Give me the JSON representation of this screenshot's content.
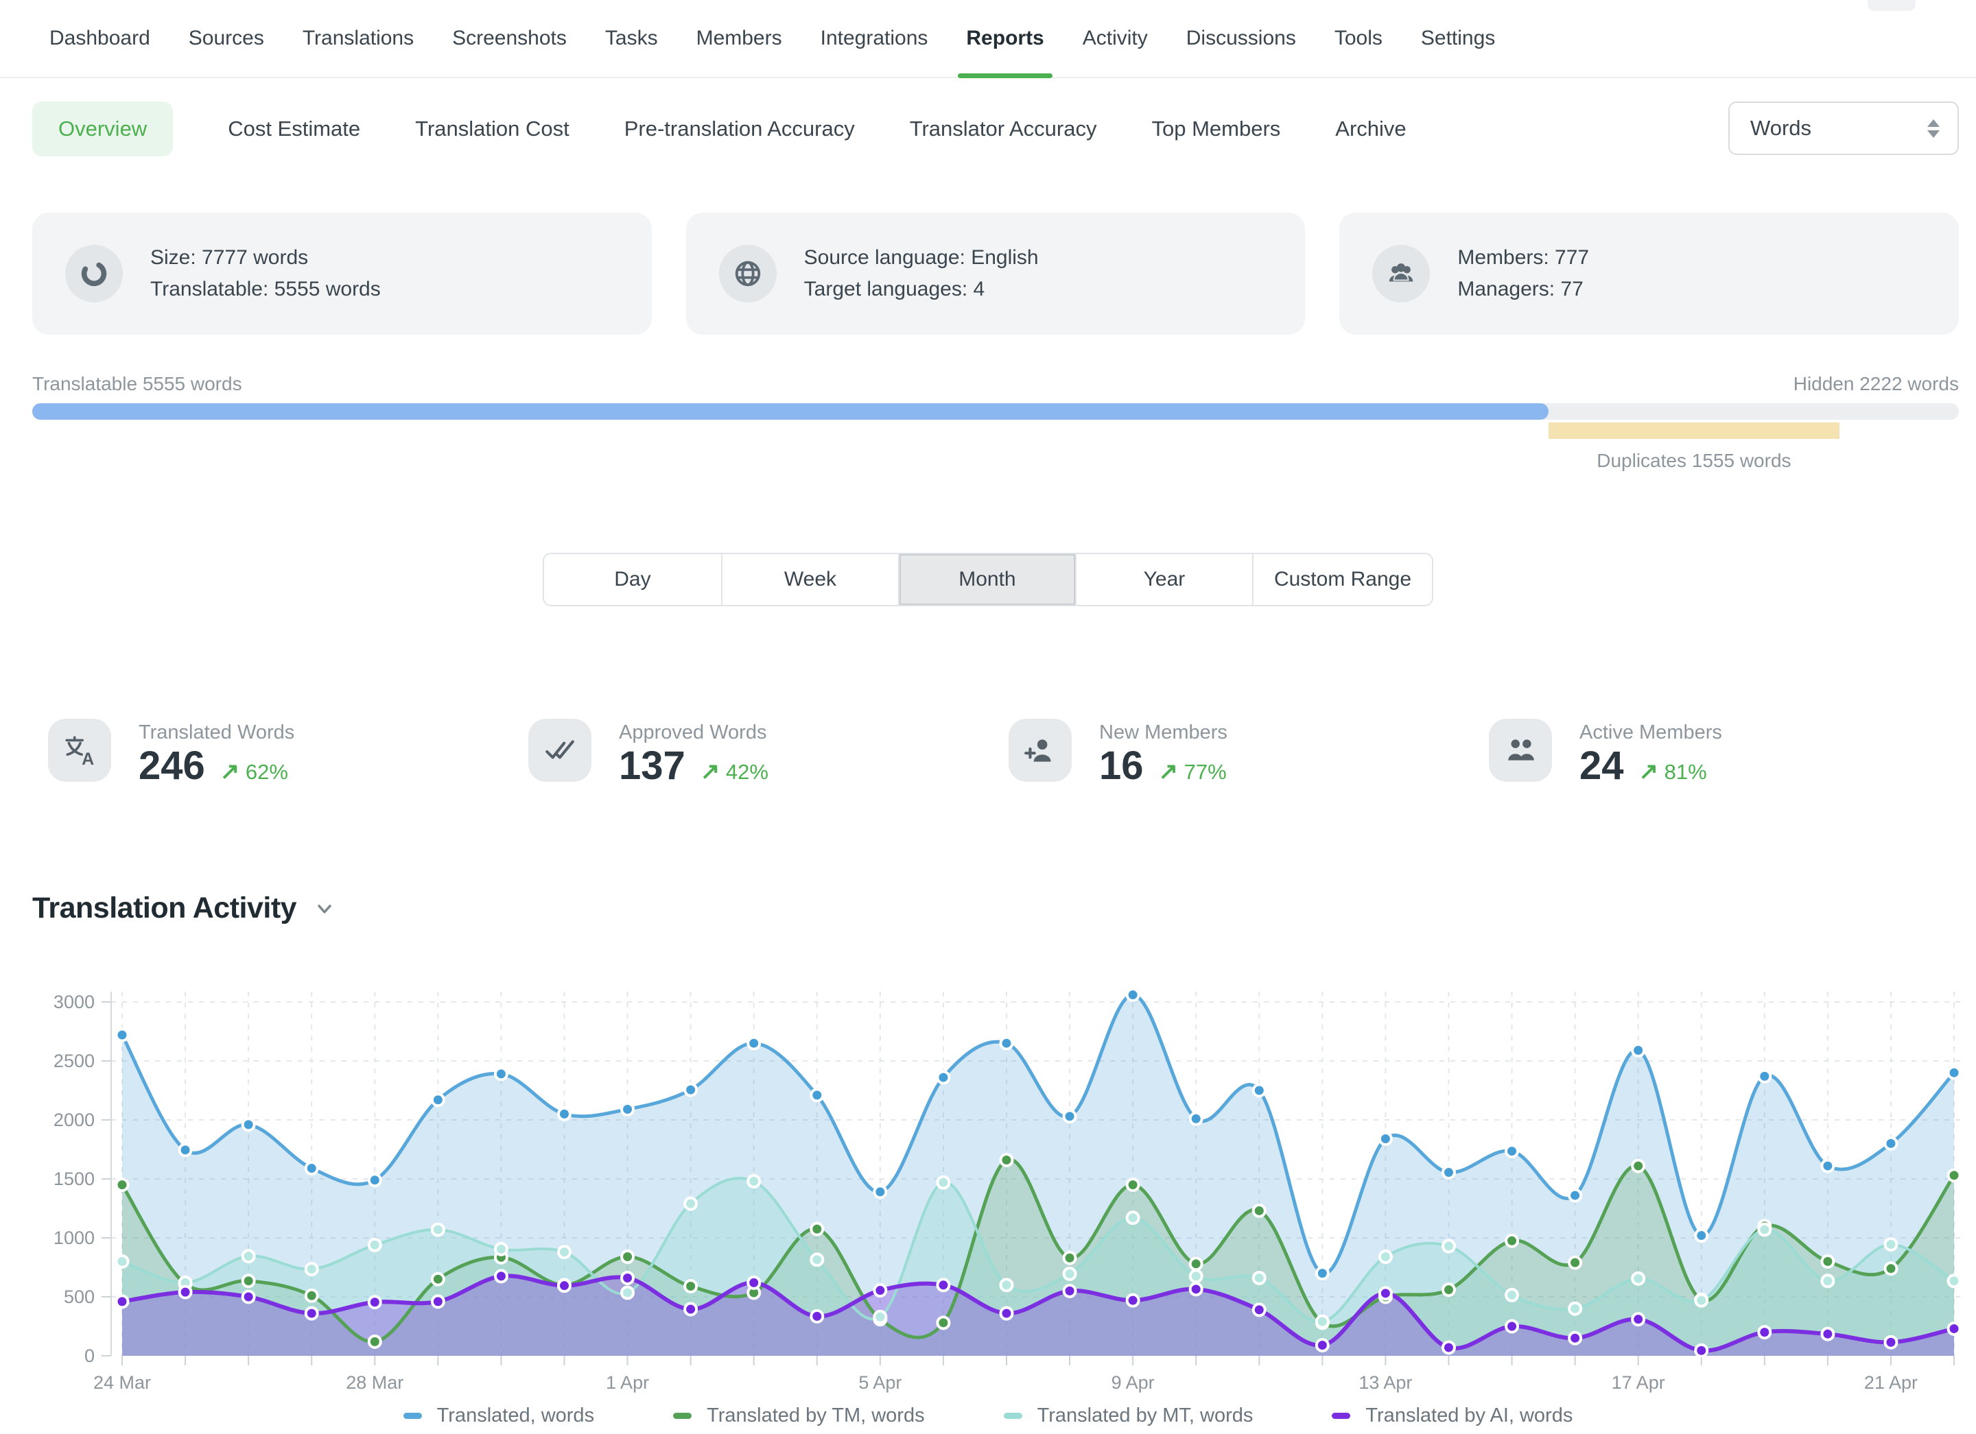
{
  "colors": {
    "accent_green": "#4caf50",
    "nav_underline_green": "#3aa23a",
    "bar_blue": "#8ab7ef",
    "bar_yellow": "#f4e3b0",
    "series_translated": "#57a7db",
    "series_tm": "#55a257",
    "series_mt": "#9adcd4",
    "series_ai": "#7b2fe0"
  },
  "nav": {
    "items": [
      "Dashboard",
      "Sources",
      "Translations",
      "Screenshots",
      "Tasks",
      "Members",
      "Integrations",
      "Reports",
      "Activity",
      "Discussions",
      "Tools",
      "Settings"
    ],
    "active": "Reports"
  },
  "report_tabs": {
    "items": [
      "Overview",
      "Cost Estimate",
      "Translation Cost",
      "Pre-translation Accuracy",
      "Translator Accuracy",
      "Top Members",
      "Archive"
    ],
    "active": "Overview",
    "unit_select_value": "Words"
  },
  "summary_cards": [
    {
      "icon": "donut-chart-icon",
      "lines": [
        "Size: 7777 words",
        "Translatable: 5555 words"
      ]
    },
    {
      "icon": "globe-icon",
      "lines": [
        "Source language: English",
        "Target languages: 4"
      ]
    },
    {
      "icon": "members-icon",
      "lines": [
        "Members: 777",
        "Managers: 77"
      ]
    }
  ],
  "words_bar": {
    "left_label": "Translatable 5555 words",
    "right_label": "Hidden 2222 words",
    "duplicates_label": "Duplicates 1555 words",
    "translatable_width_pct": 78.7,
    "duplicates_left_pct": 78.7,
    "duplicates_width_pct": 15.1
  },
  "range_tabs": {
    "options": [
      "Day",
      "Week",
      "Month",
      "Year",
      "Custom Range"
    ],
    "selected": "Month"
  },
  "metrics": [
    {
      "icon": "translate-icon",
      "label": "Translated Words",
      "value": "246",
      "delta": "62%"
    },
    {
      "icon": "double-check-icon",
      "label": "Approved Words",
      "value": "137",
      "delta": "42%"
    },
    {
      "icon": "person-plus-icon",
      "label": "New Members",
      "value": "16",
      "delta": "77%"
    },
    {
      "icon": "people-icon",
      "label": "Active Members",
      "value": "24",
      "delta": "81%"
    }
  ],
  "activity": {
    "title": "Translation Activity"
  },
  "chart_data": {
    "type": "area",
    "x": [
      "24 Mar",
      "25 Mar",
      "26 Mar",
      "27 Mar",
      "28 Mar",
      "29 Mar",
      "30 Mar",
      "31 Mar",
      "1 Apr",
      "2 Apr",
      "3 Apr",
      "4 Apr",
      "5 Apr",
      "6 Apr",
      "7 Apr",
      "8 Apr",
      "9 Apr",
      "10 Apr",
      "11 Apr",
      "12 Apr",
      "13 Apr",
      "14 Apr",
      "15 Apr",
      "16 Apr",
      "17 Apr",
      "18 Apr",
      "19 Apr",
      "20 Apr",
      "21 Apr",
      "22 Apr"
    ],
    "tick_every": 4,
    "ylim": [
      0,
      3000
    ],
    "ytick_step": 500,
    "grid": true,
    "legend_position": "bottom",
    "series": [
      {
        "name": "Translated, words",
        "color": "#57a7db",
        "values": [
          2720,
          1745,
          1960,
          1590,
          1490,
          2170,
          2390,
          2050,
          2090,
          2255,
          2650,
          2210,
          1390,
          2360,
          2650,
          2030,
          3060,
          2010,
          2250,
          700,
          1840,
          1555,
          1735,
          1360,
          2590,
          1020,
          2370,
          1610,
          1800,
          2400
        ]
      },
      {
        "name": "Translated by TM, words",
        "color": "#55a257",
        "values": [
          1450,
          610,
          635,
          510,
          120,
          650,
          835,
          600,
          840,
          590,
          535,
          1075,
          310,
          280,
          1660,
          830,
          1450,
          780,
          1230,
          280,
          500,
          560,
          975,
          790,
          1610,
          475,
          1100,
          800,
          740,
          1530
        ]
      },
      {
        "name": "Translated by MT, words",
        "color": "#9adcd4",
        "values": [
          800,
          620,
          845,
          735,
          940,
          1070,
          905,
          880,
          535,
          1290,
          1480,
          815,
          330,
          1470,
          600,
          695,
          1170,
          675,
          660,
          290,
          840,
          930,
          515,
          400,
          655,
          470,
          1070,
          635,
          945,
          635
        ]
      },
      {
        "name": "Translated by AI, words",
        "color": "#7b2fe0",
        "values": [
          460,
          540,
          500,
          360,
          455,
          460,
          675,
          595,
          660,
          395,
          620,
          335,
          555,
          600,
          360,
          550,
          470,
          565,
          390,
          90,
          530,
          70,
          250,
          150,
          310,
          45,
          200,
          185,
          115,
          230
        ]
      }
    ]
  }
}
